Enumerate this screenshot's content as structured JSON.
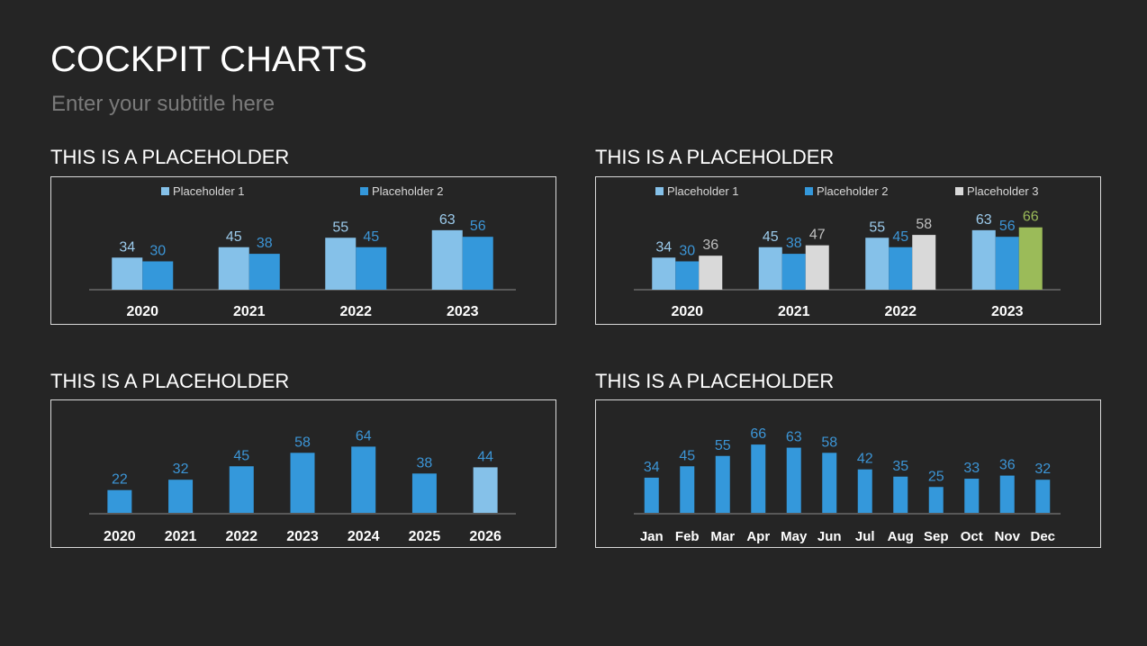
{
  "header": {
    "title": "COCKPIT CHARTS",
    "subtitle": "Enter your subtitle here"
  },
  "colors": {
    "light_blue": "#85c1e9",
    "blue": "#3498db",
    "gray": "#d9d9d9",
    "green": "#9bbb59",
    "axis": "#8c8c8c",
    "label_blue": "#3c95d6"
  },
  "panels": [
    {
      "heading": "THIS IS A PLACEHOLDER"
    },
    {
      "heading": "THIS IS A PLACEHOLDER"
    },
    {
      "heading": "THIS IS A PLACEHOLDER"
    },
    {
      "heading": "THIS IS A PLACEHOLDER"
    }
  ],
  "chart_data": [
    {
      "type": "bar",
      "title": "THIS IS A PLACEHOLDER",
      "categories": [
        "2020",
        "2021",
        "2022",
        "2023"
      ],
      "series": [
        {
          "name": "Placeholder 1",
          "values": [
            34,
            45,
            55,
            63
          ]
        },
        {
          "name": "Placeholder 2",
          "values": [
            30,
            38,
            45,
            56
          ]
        }
      ],
      "legend_position": "top",
      "grid": false
    },
    {
      "type": "bar",
      "title": "THIS IS A PLACEHOLDER",
      "categories": [
        "2020",
        "2021",
        "2022",
        "2023"
      ],
      "series": [
        {
          "name": "Placeholder 1",
          "values": [
            34,
            45,
            55,
            63
          ]
        },
        {
          "name": "Placeholder 2",
          "values": [
            30,
            38,
            45,
            56
          ]
        },
        {
          "name": "Placeholder 3",
          "values": [
            36,
            47,
            58,
            66
          ]
        }
      ],
      "legend_position": "top",
      "grid": false,
      "annotations": [
        "2023 Placeholder 3 bar highlighted green"
      ]
    },
    {
      "type": "bar",
      "title": "THIS IS A PLACEHOLDER",
      "categories": [
        "2020",
        "2021",
        "2022",
        "2023",
        "2024",
        "2025",
        "2026"
      ],
      "values": [
        22,
        32,
        45,
        58,
        64,
        38,
        44
      ],
      "grid": false,
      "annotations": [
        "2026 bar highlighted light blue"
      ]
    },
    {
      "type": "bar",
      "title": "THIS IS A PLACEHOLDER",
      "categories": [
        "Jan",
        "Feb",
        "Mar",
        "Apr",
        "May",
        "Jun",
        "Jul",
        "Aug",
        "Sep",
        "Oct",
        "Nov",
        "Dec"
      ],
      "values": [
        34,
        45,
        55,
        66,
        63,
        58,
        42,
        35,
        25,
        33,
        36,
        32
      ],
      "grid": false
    }
  ]
}
